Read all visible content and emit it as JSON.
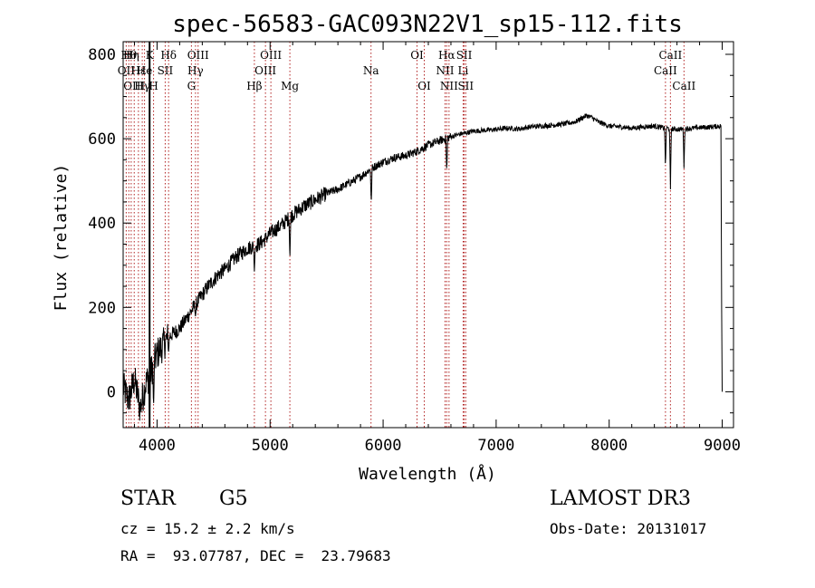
{
  "chart_data": {
    "type": "line",
    "title": "spec-56583-GAC093N22V1_sp15-112.fits",
    "xlabel": "Wavelength (Å)",
    "ylabel": "Flux (relative)",
    "xlim": [
      3700,
      9100
    ],
    "ylim": [
      -85,
      830
    ],
    "xticks": [
      4000,
      5000,
      6000,
      7000,
      8000,
      9000
    ],
    "yticks": [
      0,
      200,
      400,
      600,
      800
    ],
    "grid": false,
    "series": [
      {
        "name": "flux",
        "x": [
          3700,
          3750,
          3800,
          3850,
          3900,
          3950,
          4000,
          4050,
          4100,
          4150,
          4200,
          4250,
          4300,
          4350,
          4400,
          4450,
          4500,
          4550,
          4600,
          4650,
          4700,
          4750,
          4800,
          4850,
          4900,
          4950,
          5000,
          5100,
          5200,
          5300,
          5400,
          5500,
          5600,
          5700,
          5800,
          5900,
          6000,
          6100,
          6200,
          6300,
          6400,
          6500,
          6600,
          6700,
          6800,
          6900,
          7000,
          7100,
          7200,
          7300,
          7400,
          7500,
          7600,
          7700,
          7800,
          7850,
          7900,
          8000,
          8100,
          8200,
          8300,
          8400,
          8500,
          8600,
          8700,
          8800,
          8900,
          8990,
          9000
        ],
        "y": [
          10,
          -20,
          30,
          -40,
          20,
          50,
          90,
          110,
          130,
          140,
          150,
          170,
          190,
          210,
          230,
          250,
          265,
          280,
          290,
          305,
          320,
          330,
          340,
          345,
          350,
          360,
          375,
          395,
          420,
          440,
          455,
          470,
          480,
          495,
          510,
          530,
          545,
          555,
          560,
          570,
          585,
          595,
          605,
          612,
          618,
          620,
          622,
          625,
          623,
          628,
          630,
          632,
          635,
          640,
          655,
          650,
          640,
          630,
          628,
          625,
          628,
          630,
          625,
          622,
          624,
          626,
          628,
          630,
          0
        ],
        "dips": [
          {
            "x": 3934,
            "y": -80
          },
          {
            "x": 3969,
            "y": -40
          },
          {
            "x": 4102,
            "y": 95
          },
          {
            "x": 4340,
            "y": 175
          },
          {
            "x": 4861,
            "y": 285
          },
          {
            "x": 5175,
            "y": 310
          },
          {
            "x": 5895,
            "y": 445
          },
          {
            "x": 6563,
            "y": 520
          },
          {
            "x": 8498,
            "y": 530
          },
          {
            "x": 8542,
            "y": 480
          },
          {
            "x": 8662,
            "y": 530
          }
        ]
      }
    ],
    "lines": [
      {
        "x": 3727,
        "label": "OII",
        "row": 1
      },
      {
        "x": 3750,
        "label": "Hθ",
        "row": 0
      },
      {
        "x": 3771,
        "label": "Hη",
        "row": 0
      },
      {
        "x": 3798,
        "label": "OIII",
        "row": 2
      },
      {
        "x": 3835,
        "label": "Hε",
        "row": 1
      },
      {
        "x": 3869,
        "label": "Hγ",
        "row": 2
      },
      {
        "x": 3889,
        "label": "He",
        "row": 1
      },
      {
        "x": 3934,
        "label": "K",
        "row": 0
      },
      {
        "x": 3969,
        "label": "H",
        "row": 2
      },
      {
        "x": 4072,
        "label": "SII",
        "row": 1
      },
      {
        "x": 4102,
        "label": "Hδ",
        "row": 0
      },
      {
        "x": 4304,
        "label": "G",
        "row": 2
      },
      {
        "x": 4340,
        "label": "Hγ",
        "row": 1
      },
      {
        "x": 4363,
        "label": "OIII",
        "row": 0
      },
      {
        "x": 4861,
        "label": "Hβ",
        "row": 2
      },
      {
        "x": 4959,
        "label": "OIII",
        "row": 1
      },
      {
        "x": 5007,
        "label": "OIII",
        "row": 0
      },
      {
        "x": 5175,
        "label": "Mg",
        "row": 2
      },
      {
        "x": 5893,
        "label": "Na",
        "row": 1
      },
      {
        "x": 6300,
        "label": "OI",
        "row": 0
      },
      {
        "x": 6364,
        "label": "OI",
        "row": 2
      },
      {
        "x": 6548,
        "label": "NII",
        "row": 1
      },
      {
        "x": 6563,
        "label": "Hα",
        "row": 0
      },
      {
        "x": 6583,
        "label": "NII",
        "row": 2
      },
      {
        "x": 6708,
        "label": "Li",
        "row": 1
      },
      {
        "x": 6717,
        "label": "SII",
        "row": 0
      },
      {
        "x": 6731,
        "label": "SII",
        "row": 2
      },
      {
        "x": 8498,
        "label": "CaII",
        "row": 1
      },
      {
        "x": 8542,
        "label": "CaII",
        "row": 0
      },
      {
        "x": 8662,
        "label": "CaII",
        "row": 2
      }
    ],
    "marker": {
      "x": 3934
    }
  },
  "info": {
    "object_class": "STAR",
    "subclass": "G5",
    "survey": "LAMOST DR3",
    "redshift": "cz = 15.2 ± 2.2 km/s",
    "obs_date": "Obs-Date: 20131017",
    "coords": "RA =  93.07787, DEC =  23.79683"
  },
  "colors": {
    "line_marker": "#b22222",
    "spectrum": "#000000",
    "axis": "#000000"
  }
}
